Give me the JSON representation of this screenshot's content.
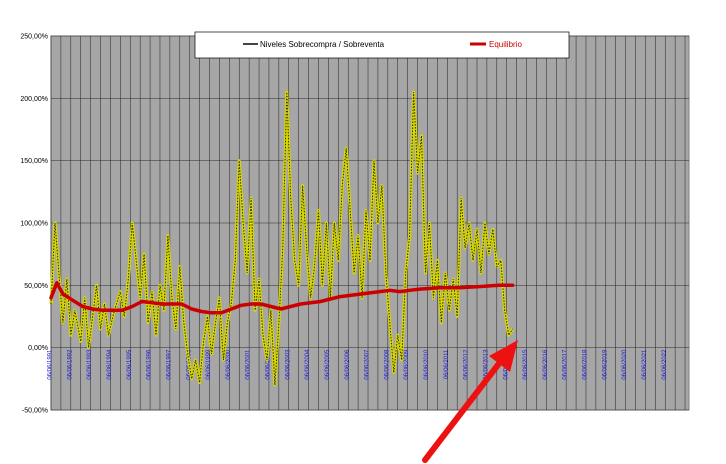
{
  "chart_data": {
    "type": "line",
    "y_tick_labels": [
      "250,00%",
      "200,00%",
      "150,00%",
      "100,00%",
      "50,00%",
      "0,00%",
      "-50,00%"
    ],
    "ylim": [
      -50,
      250
    ],
    "x_tick_labels": [
      "06/06/1991",
      "06/06/1992",
      "06/06/1993",
      "06/06/1994",
      "06/06/1995",
      "06/06/1996",
      "06/06/1997",
      "06/06/1998",
      "06/06/1999",
      "06/06/2000",
      "06/06/2001",
      "06/06/2002",
      "06/06/2003",
      "06/06/2004",
      "06/06/2005",
      "06/06/2006",
      "06/06/2007",
      "06/06/2008",
      "06/06/2009",
      "06/06/2010",
      "06/06/2011",
      "06/06/2012",
      "06/06/2013",
      "06/06/2014",
      "06/06/2015",
      "06/06/2016",
      "06/06/2017",
      "06/06/2018",
      "06/06/2019",
      "06/06/2020",
      "06/06/2021",
      "06/06/2022"
    ],
    "x_range": [
      1991.4,
      2023.6
    ],
    "grid": true,
    "legend_position": "top",
    "series": [
      {
        "name": "Niveles  Sobrecompra / Sobreventa",
        "color": "#d8d800",
        "points": [
          [
            1991.4,
            35
          ],
          [
            1991.6,
            100
          ],
          [
            1991.8,
            60
          ],
          [
            1992.0,
            20
          ],
          [
            1992.2,
            55
          ],
          [
            1992.4,
            10
          ],
          [
            1992.6,
            30
          ],
          [
            1992.9,
            5
          ],
          [
            1993.1,
            40
          ],
          [
            1993.3,
            0
          ],
          [
            1993.5,
            25
          ],
          [
            1993.7,
            50
          ],
          [
            1993.9,
            15
          ],
          [
            1994.1,
            35
          ],
          [
            1994.3,
            10
          ],
          [
            1994.6,
            30
          ],
          [
            1994.9,
            45
          ],
          [
            1995.1,
            25
          ],
          [
            1995.3,
            55
          ],
          [
            1995.5,
            100
          ],
          [
            1995.7,
            70
          ],
          [
            1995.9,
            40
          ],
          [
            1996.1,
            75
          ],
          [
            1996.3,
            20
          ],
          [
            1996.5,
            45
          ],
          [
            1996.7,
            10
          ],
          [
            1996.9,
            50
          ],
          [
            1997.1,
            30
          ],
          [
            1997.3,
            90
          ],
          [
            1997.5,
            40
          ],
          [
            1997.7,
            15
          ],
          [
            1997.9,
            65
          ],
          [
            1998.1,
            20
          ],
          [
            1998.3,
            -5
          ],
          [
            1998.5,
            -25
          ],
          [
            1998.7,
            -10
          ],
          [
            1998.9,
            -28
          ],
          [
            1999.1,
            5
          ],
          [
            1999.3,
            25
          ],
          [
            1999.5,
            -5
          ],
          [
            1999.7,
            20
          ],
          [
            1999.9,
            40
          ],
          [
            2000.1,
            -10
          ],
          [
            2000.3,
            20
          ],
          [
            2000.5,
            35
          ],
          [
            2000.7,
            70
          ],
          [
            2000.9,
            150
          ],
          [
            2001.1,
            100
          ],
          [
            2001.3,
            60
          ],
          [
            2001.5,
            120
          ],
          [
            2001.7,
            30
          ],
          [
            2001.9,
            55
          ],
          [
            2002.1,
            10
          ],
          [
            2002.3,
            -10
          ],
          [
            2002.5,
            30
          ],
          [
            2002.7,
            -30
          ],
          [
            2002.9,
            20
          ],
          [
            2003.1,
            80
          ],
          [
            2003.3,
            205
          ],
          [
            2003.5,
            120
          ],
          [
            2003.7,
            70
          ],
          [
            2003.9,
            50
          ],
          [
            2004.1,
            130
          ],
          [
            2004.3,
            80
          ],
          [
            2004.5,
            40
          ],
          [
            2004.7,
            65
          ],
          [
            2004.9,
            110
          ],
          [
            2005.1,
            50
          ],
          [
            2005.3,
            100
          ],
          [
            2005.5,
            40
          ],
          [
            2005.7,
            100
          ],
          [
            2005.9,
            70
          ],
          [
            2006.1,
            130
          ],
          [
            2006.3,
            160
          ],
          [
            2006.5,
            110
          ],
          [
            2006.7,
            60
          ],
          [
            2006.9,
            90
          ],
          [
            2007.1,
            40
          ],
          [
            2007.3,
            110
          ],
          [
            2007.5,
            70
          ],
          [
            2007.7,
            150
          ],
          [
            2007.9,
            100
          ],
          [
            2008.1,
            130
          ],
          [
            2008.3,
            60
          ],
          [
            2008.5,
            20
          ],
          [
            2008.7,
            -20
          ],
          [
            2008.9,
            10
          ],
          [
            2009.1,
            -10
          ],
          [
            2009.3,
            60
          ],
          [
            2009.5,
            90
          ],
          [
            2009.7,
            205
          ],
          [
            2009.9,
            140
          ],
          [
            2010.1,
            170
          ],
          [
            2010.3,
            60
          ],
          [
            2010.5,
            100
          ],
          [
            2010.7,
            40
          ],
          [
            2010.9,
            70
          ],
          [
            2011.1,
            20
          ],
          [
            2011.3,
            60
          ],
          [
            2011.5,
            30
          ],
          [
            2011.7,
            55
          ],
          [
            2011.9,
            25
          ],
          [
            2012.1,
            120
          ],
          [
            2012.3,
            80
          ],
          [
            2012.5,
            100
          ],
          [
            2012.7,
            70
          ],
          [
            2012.9,
            95
          ],
          [
            2013.1,
            60
          ],
          [
            2013.3,
            100
          ],
          [
            2013.5,
            75
          ],
          [
            2013.7,
            95
          ],
          [
            2013.9,
            65
          ],
          [
            2014.1,
            70
          ],
          [
            2014.3,
            30
          ],
          [
            2014.5,
            10
          ],
          [
            2014.7,
            15
          ]
        ]
      },
      {
        "name": "Equilibrio",
        "color": "#cc0000",
        "points": [
          [
            1991.4,
            40
          ],
          [
            1991.7,
            52
          ],
          [
            1992.0,
            43
          ],
          [
            1992.5,
            38
          ],
          [
            1993.0,
            33
          ],
          [
            1993.5,
            31
          ],
          [
            1994.0,
            30
          ],
          [
            1995.0,
            30
          ],
          [
            1995.5,
            33
          ],
          [
            1996.0,
            37
          ],
          [
            1996.5,
            36
          ],
          [
            1997.0,
            35
          ],
          [
            1998.0,
            35
          ],
          [
            1998.5,
            31
          ],
          [
            1999.0,
            29
          ],
          [
            1999.5,
            28
          ],
          [
            2000.0,
            28
          ],
          [
            2000.5,
            31
          ],
          [
            2001.0,
            34
          ],
          [
            2001.5,
            35
          ],
          [
            2002.0,
            35
          ],
          [
            2002.5,
            33
          ],
          [
            2003.0,
            31
          ],
          [
            2003.5,
            33
          ],
          [
            2004.0,
            35
          ],
          [
            2005.0,
            37
          ],
          [
            2005.5,
            39
          ],
          [
            2006.0,
            41
          ],
          [
            2007.0,
            43
          ],
          [
            2008.0,
            45
          ],
          [
            2008.5,
            46
          ],
          [
            2009.0,
            45
          ],
          [
            2009.5,
            46
          ],
          [
            2010.0,
            47
          ],
          [
            2011.0,
            48
          ],
          [
            2012.0,
            48
          ],
          [
            2013.0,
            49
          ],
          [
            2014.0,
            50
          ],
          [
            2014.7,
            50
          ]
        ]
      }
    ]
  }
}
